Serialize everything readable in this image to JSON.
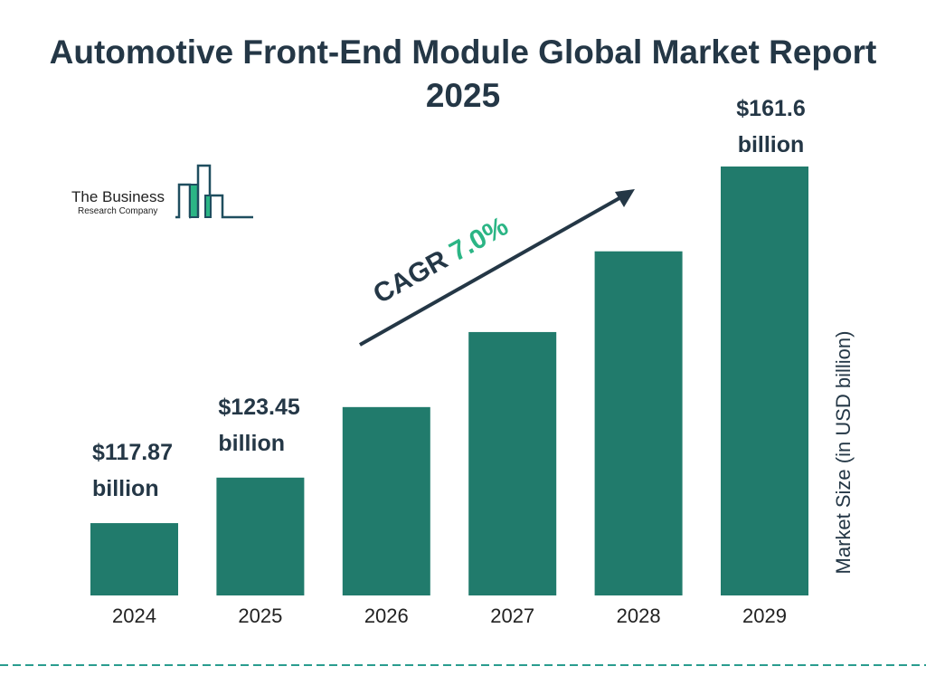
{
  "title": "Automotive Front-End Module Global Market Report 2025",
  "logo": {
    "line1": "The Business",
    "line2": "Research Company"
  },
  "cagr": {
    "label": "CAGR",
    "value": "7.0%"
  },
  "colors": {
    "bar": "#217b6c",
    "text": "#243746",
    "accent": "#2bb585",
    "divider": "#2a9d8f"
  },
  "chart_data": {
    "type": "bar",
    "categories": [
      "2024",
      "2025",
      "2026",
      "2027",
      "2028",
      "2029"
    ],
    "values": [
      117.87,
      123.45,
      132.1,
      141.3,
      151.2,
      161.6
    ],
    "data_labels": [
      {
        "index": 0,
        "line1": "$117.87",
        "line2": "billion"
      },
      {
        "index": 1,
        "line1": "$123.45",
        "line2": "billion"
      },
      {
        "index": 5,
        "line1": "$161.6",
        "line2": "billion"
      }
    ],
    "ylabel": "Market Size (in USD billion)",
    "grid": false
  }
}
